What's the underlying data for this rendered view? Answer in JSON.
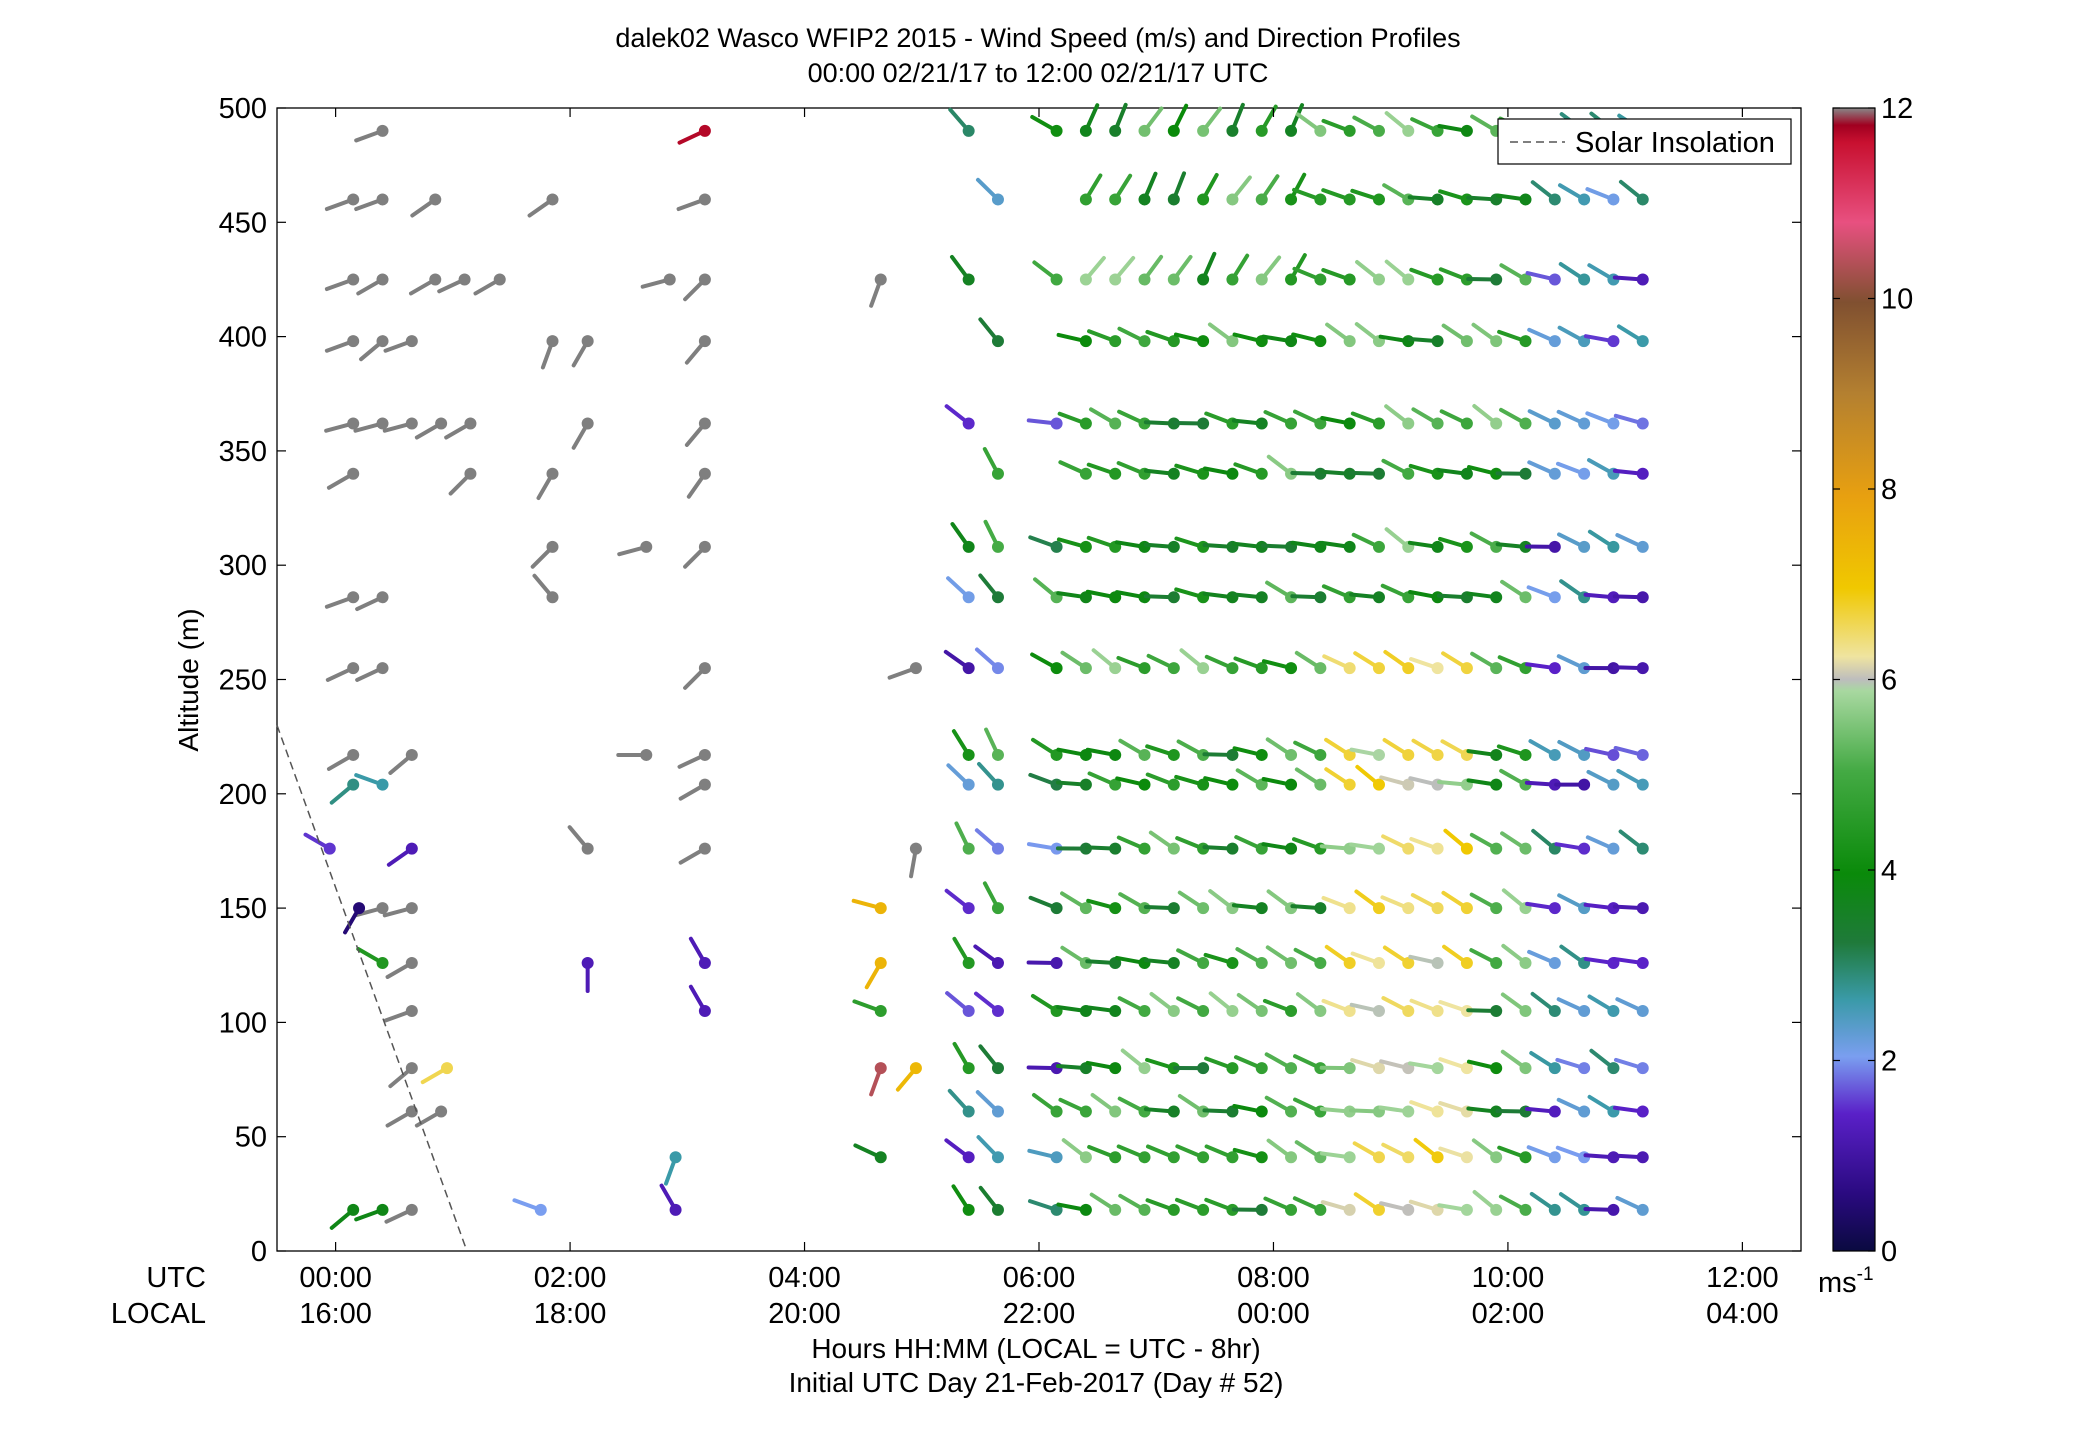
{
  "chart_data": {
    "type": "scatter",
    "title": "dalek02 Wasco WFIP2 2015 - Wind Speed (m/s) and Direction Profiles",
    "subtitle": "00:00 02/21/17 to 12:00 02/21/17  UTC",
    "ylabel": "Altitude (m)",
    "xlabel": "Hours HH:MM  (LOCAL = UTC - 8hr)",
    "xlabel2": "Initial UTC Day 21-Feb-2017 (Day # 52)",
    "xrow_label_utc": "UTC",
    "xrow_label_local": "LOCAL",
    "xlim_hours_utc": [
      -0.5,
      12.5
    ],
    "ylim": [
      0,
      500
    ],
    "yticks": [
      "0",
      "50",
      "100",
      "150",
      "200",
      "250",
      "300",
      "350",
      "400",
      "450",
      "500"
    ],
    "xticks_utc": [
      "00:00",
      "02:00",
      "04:00",
      "06:00",
      "08:00",
      "10:00",
      "12:00"
    ],
    "xticks_local": [
      "16:00",
      "18:00",
      "20:00",
      "22:00",
      "00:00",
      "02:00",
      "04:00"
    ],
    "legend": {
      "entries": [
        "Solar Insolation"
      ],
      "placement": "top-right"
    },
    "solar_insolation_line": {
      "points_hours_alt": [
        [
          -0.5,
          230
        ],
        [
          1.12,
          0
        ]
      ],
      "style": "dashed",
      "color": "#555555"
    },
    "colorbar": {
      "min": 0,
      "max": 12,
      "ticks": [
        "0",
        "2",
        "4",
        "6",
        "8",
        "10",
        "12"
      ],
      "unit_label": "ms",
      "unit_superscript": "-1"
    },
    "notes": "Wind barbs: dot marks observation (time, altitude), stroke points in direction wind comes from; color encodes speed (m/s). Gray = low-quality/no speed.",
    "barbs": {
      "gray": [
        [
          0.4,
          490,
          250
        ],
        [
          0.4,
          460,
          250
        ],
        [
          0.15,
          460,
          250
        ],
        [
          0.85,
          460,
          235
        ],
        [
          1.85,
          460,
          235
        ],
        [
          3.15,
          460,
          250
        ],
        [
          0.15,
          425,
          250
        ],
        [
          0.4,
          425,
          240
        ],
        [
          0.85,
          425,
          240
        ],
        [
          1.1,
          425,
          245
        ],
        [
          1.4,
          425,
          240
        ],
        [
          2.85,
          425,
          255
        ],
        [
          3.15,
          425,
          225
        ],
        [
          4.65,
          425,
          200
        ],
        [
          0.15,
          398,
          250
        ],
        [
          0.4,
          398,
          230
        ],
        [
          0.65,
          398,
          250
        ],
        [
          1.85,
          398,
          200
        ],
        [
          2.15,
          398,
          210
        ],
        [
          3.15,
          398,
          220
        ],
        [
          0.15,
          362,
          255
        ],
        [
          0.4,
          362,
          255
        ],
        [
          0.65,
          362,
          255
        ],
        [
          0.9,
          362,
          240
        ],
        [
          1.15,
          362,
          240
        ],
        [
          2.15,
          362,
          210
        ],
        [
          3.15,
          362,
          220
        ],
        [
          0.15,
          340,
          240
        ],
        [
          1.15,
          340,
          225
        ],
        [
          1.85,
          340,
          210
        ],
        [
          3.15,
          340,
          215
        ],
        [
          1.85,
          308,
          225
        ],
        [
          2.65,
          308,
          255
        ],
        [
          3.15,
          308,
          225
        ],
        [
          0.15,
          286,
          250
        ],
        [
          0.4,
          286,
          245
        ],
        [
          1.85,
          286,
          320
        ],
        [
          0.15,
          255,
          245
        ],
        [
          0.4,
          255,
          245
        ],
        [
          3.15,
          255,
          225
        ],
        [
          4.95,
          255,
          250
        ],
        [
          0.15,
          217,
          240
        ],
        [
          0.65,
          217,
          230
        ],
        [
          2.65,
          217,
          270
        ],
        [
          3.15,
          217,
          245
        ],
        [
          3.15,
          204,
          240
        ],
        [
          2.15,
          176,
          320
        ],
        [
          3.15,
          176,
          240
        ],
        [
          4.95,
          176,
          190
        ],
        [
          0.4,
          150,
          255
        ],
        [
          0.65,
          150,
          255
        ],
        [
          0.65,
          126,
          240
        ],
        [
          0.65,
          105,
          250
        ],
        [
          0.65,
          80,
          230
        ],
        [
          0.65,
          61,
          240
        ],
        [
          0.9,
          61,
          240
        ],
        [
          0.65,
          18,
          245
        ]
      ],
      "colored": [
        [
          3.15,
          490,
          245,
          11.8
        ],
        [
          0.15,
          204,
          230,
          2.8
        ],
        [
          0.4,
          204,
          290,
          2.6
        ],
        [
          -0.05,
          176,
          300,
          1.5
        ],
        [
          0.65,
          176,
          235,
          1.2
        ],
        [
          0.2,
          150,
          210,
          0.5
        ],
        [
          0.4,
          126,
          300,
          4.4
        ],
        [
          0.95,
          80,
          240,
          6.6
        ],
        [
          1.75,
          18,
          290,
          2.0
        ],
        [
          2.15,
          126,
          180,
          1.2
        ],
        [
          3.15,
          126,
          330,
          1.2
        ],
        [
          3.15,
          105,
          330,
          1.2
        ],
        [
          2.9,
          18,
          330,
          1.2
        ],
        [
          2.9,
          41,
          200,
          2.6
        ],
        [
          0.15,
          18,
          230,
          3.8
        ],
        [
          0.4,
          18,
          250,
          3.8
        ],
        [
          4.65,
          150,
          285,
          7.5
        ],
        [
          4.65,
          126,
          210,
          7.5
        ],
        [
          4.65,
          105,
          290,
          4.6
        ],
        [
          4.65,
          80,
          200,
          10.4
        ],
        [
          4.95,
          80,
          220,
          7.4
        ],
        [
          4.65,
          41,
          295,
          3.6
        ]
      ]
    },
    "barb_grid": {
      "times_hours": [
        5.4,
        5.65,
        6.15,
        6.4,
        6.65,
        6.9,
        7.15,
        7.4,
        7.65,
        7.9,
        8.15,
        8.4,
        8.65,
        8.9,
        9.15,
        9.4,
        9.65,
        9.9,
        10.15,
        10.4,
        10.65,
        10.9,
        11.15
      ],
      "altitudes": [
        18,
        41,
        61,
        80,
        105,
        126,
        150,
        176,
        204,
        217,
        255,
        286,
        308,
        340,
        362,
        398,
        425,
        460,
        490
      ],
      "typical_speed_range_ms": [
        1,
        7
      ],
      "typical_direction_deg": 290
    }
  }
}
